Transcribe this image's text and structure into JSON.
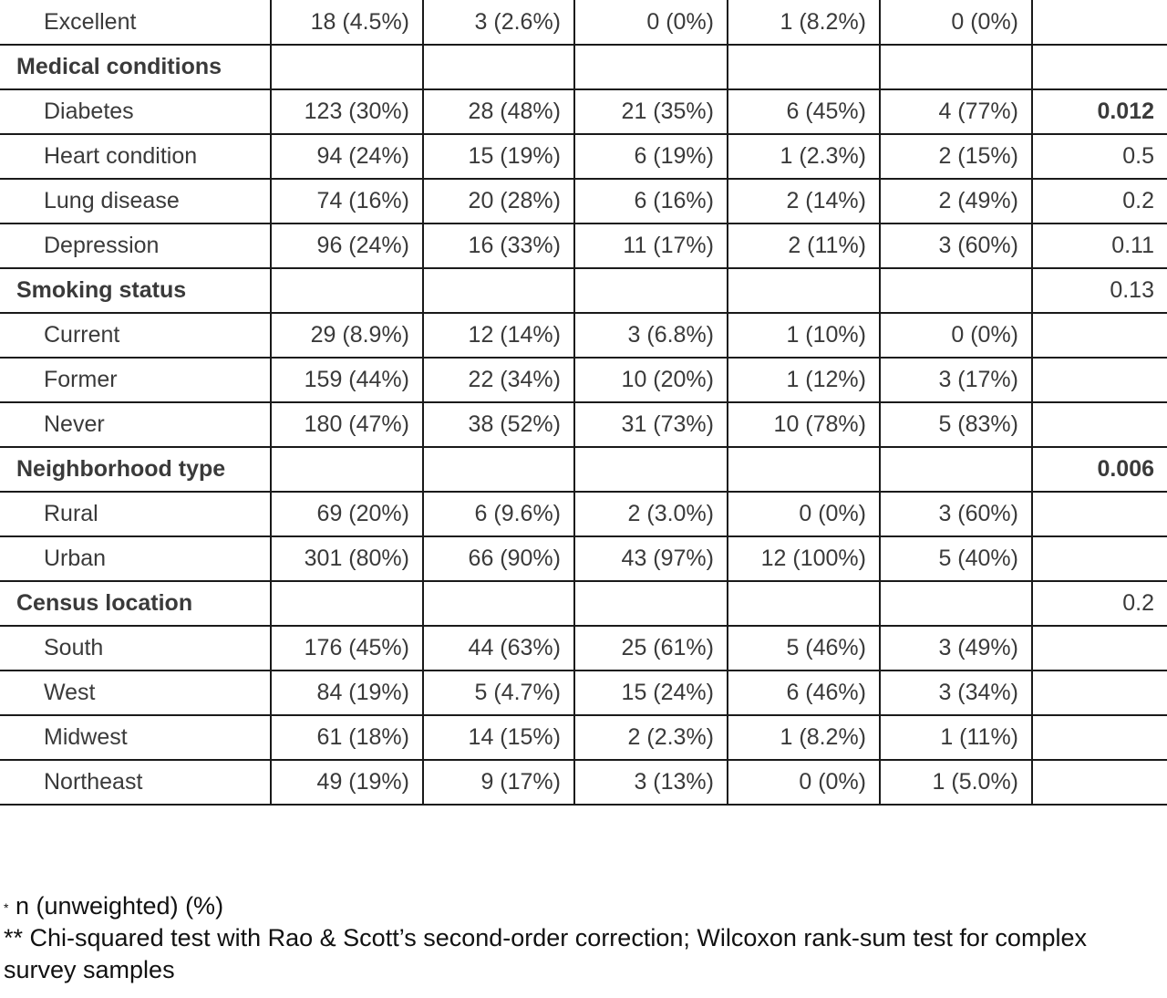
{
  "table": {
    "rows": [
      {
        "type": "item",
        "label": "Excellent",
        "values": [
          "18 (4.5%)",
          "3 (2.6%)",
          "0 (0%)",
          "1 (8.2%)",
          "0 (0%)"
        ],
        "p": "",
        "p_bold": false
      },
      {
        "type": "section",
        "label": "Medical conditions",
        "values": [
          "",
          "",
          "",
          "",
          ""
        ],
        "p": "",
        "p_bold": false
      },
      {
        "type": "item",
        "label": "Diabetes",
        "values": [
          "123 (30%)",
          "28 (48%)",
          "21 (35%)",
          "6 (45%)",
          "4 (77%)"
        ],
        "p": "0.012",
        "p_bold": true
      },
      {
        "type": "item",
        "label": "Heart condition",
        "values": [
          "94 (24%)",
          "15 (19%)",
          "6 (19%)",
          "1 (2.3%)",
          "2 (15%)"
        ],
        "p": "0.5",
        "p_bold": false
      },
      {
        "type": "item",
        "label": "Lung disease",
        "values": [
          "74 (16%)",
          "20 (28%)",
          "6 (16%)",
          "2 (14%)",
          "2 (49%)"
        ],
        "p": "0.2",
        "p_bold": false
      },
      {
        "type": "item",
        "label": "Depression",
        "values": [
          "96 (24%)",
          "16 (33%)",
          "11 (17%)",
          "2 (11%)",
          "3 (60%)"
        ],
        "p": "0.11",
        "p_bold": false
      },
      {
        "type": "section",
        "label": "Smoking status",
        "values": [
          "",
          "",
          "",
          "",
          ""
        ],
        "p": "0.13",
        "p_bold": false
      },
      {
        "type": "item",
        "label": "Current",
        "values": [
          "29 (8.9%)",
          "12 (14%)",
          "3 (6.8%)",
          "1 (10%)",
          "0 (0%)"
        ],
        "p": "",
        "p_bold": false
      },
      {
        "type": "item",
        "label": "Former",
        "values": [
          "159 (44%)",
          "22 (34%)",
          "10 (20%)",
          "1 (12%)",
          "3 (17%)"
        ],
        "p": "",
        "p_bold": false
      },
      {
        "type": "item",
        "label": "Never",
        "values": [
          "180 (47%)",
          "38 (52%)",
          "31 (73%)",
          "10 (78%)",
          "5 (83%)"
        ],
        "p": "",
        "p_bold": false
      },
      {
        "type": "section",
        "label": "Neighborhood type",
        "values": [
          "",
          "",
          "",
          "",
          ""
        ],
        "p": "0.006",
        "p_bold": true
      },
      {
        "type": "item",
        "label": "Rural",
        "values": [
          "69 (20%)",
          "6 (9.6%)",
          "2 (3.0%)",
          "0 (0%)",
          "3 (60%)"
        ],
        "p": "",
        "p_bold": false
      },
      {
        "type": "item",
        "label": "Urban",
        "values": [
          "301 (80%)",
          "66 (90%)",
          "43 (97%)",
          "12 (100%)",
          "5 (40%)"
        ],
        "p": "",
        "p_bold": false
      },
      {
        "type": "section",
        "label": "Census location",
        "values": [
          "",
          "",
          "",
          "",
          ""
        ],
        "p": "0.2",
        "p_bold": false
      },
      {
        "type": "item",
        "label": "South",
        "values": [
          "176 (45%)",
          "44 (63%)",
          "25 (61%)",
          "5 (46%)",
          "3 (49%)"
        ],
        "p": "",
        "p_bold": false
      },
      {
        "type": "item",
        "label": "West",
        "values": [
          "84 (19%)",
          "5 (4.7%)",
          "15 (24%)",
          "6 (46%)",
          "3 (34%)"
        ],
        "p": "",
        "p_bold": false
      },
      {
        "type": "item",
        "label": "Midwest",
        "values": [
          "61 (18%)",
          "14 (15%)",
          "2 (2.3%)",
          "1 (8.2%)",
          "1 (11%)"
        ],
        "p": "",
        "p_bold": false
      },
      {
        "type": "item",
        "label": "Northeast",
        "values": [
          "49 (19%)",
          "9 (17%)",
          "3 (13%)",
          "0 (0%)",
          "1 (5.0%)"
        ],
        "p": "",
        "p_bold": false
      }
    ]
  },
  "footnotes": {
    "fn1_marker": "*",
    "fn1_text": " n (unweighted) (%)",
    "fn2_text": "** Chi-squared test with Rao & Scott’s second-order correction; Wilcoxon rank-sum test for complex survey samples"
  }
}
